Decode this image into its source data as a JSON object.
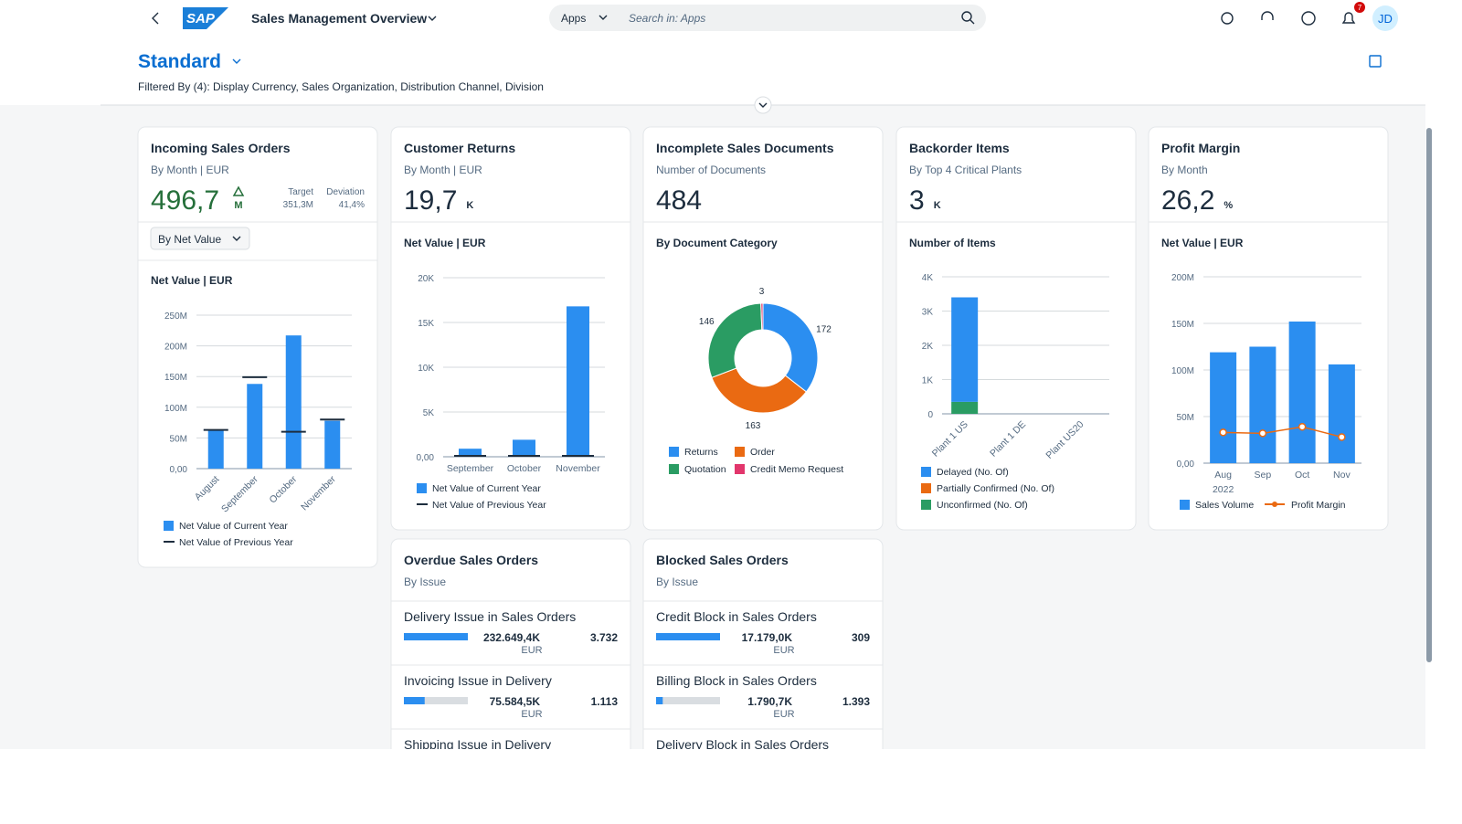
{
  "header": {
    "logo": "SAP",
    "app_title": "Sales Management Overview",
    "search_scope": "Apps",
    "search_placeholder": "Search in: Apps",
    "notification_count": "7",
    "user_initials": "JD"
  },
  "page": {
    "variant": "Standard",
    "filter_text": "Filtered By (4): Display Currency, Sales Organization, Distribution Channel, Division"
  },
  "cards": [
    {
      "title": "Incoming Sales Orders",
      "subtitle": "By Month | EUR",
      "kpi": {
        "value": "496,7",
        "unit": "M",
        "color": "#256f3a",
        "target_label": "Target",
        "target": "351,3M",
        "deviation_label": "Deviation",
        "deviation": "41,4%"
      },
      "dropdown": "By Net Value",
      "chart": {
        "type": "bar",
        "title": "Net Value | EUR",
        "categories": [
          "August",
          "September",
          "October",
          "November"
        ],
        "series": [
          {
            "name": "Net Value of Current Year",
            "color": "#2b8ef0",
            "values": [
              62,
              138,
              217,
              78
            ]
          },
          {
            "name": "Net Value of Previous Year",
            "color": "#1d2d3e",
            "style": "marker",
            "values": [
              63,
              149,
              60,
              80
            ]
          }
        ],
        "ylim": [
          0,
          250
        ],
        "yticks": [
          {
            "value": 0,
            "label": "0,00"
          },
          {
            "value": 50,
            "label": "50M"
          },
          {
            "value": 100,
            "label": "100M"
          },
          {
            "value": 150,
            "label": "150M"
          },
          {
            "value": 200,
            "label": "200M"
          },
          {
            "value": 250,
            "label": "250M"
          }
        ],
        "grid": true,
        "rotate_labels": true
      }
    },
    {
      "title": "Customer Returns",
      "subtitle": "By Month | EUR",
      "kpi": {
        "value": "19,7",
        "unit": "K",
        "color": "#1d2d3e"
      },
      "chart": {
        "type": "bar",
        "title": "Net Value | EUR",
        "categories": [
          "September",
          "October",
          "November"
        ],
        "series": [
          {
            "name": "Net Value of Current Year",
            "color": "#2b8ef0",
            "values": [
              0.9,
              1.9,
              16.8
            ]
          },
          {
            "name": "Net Value of Previous Year",
            "color": "#1d2d3e",
            "style": "marker",
            "values": [
              0.1,
              0.1,
              0.1
            ]
          }
        ],
        "ylim": [
          0,
          20
        ],
        "yticks": [
          {
            "value": 0,
            "label": "0,00"
          },
          {
            "value": 5,
            "label": "5K"
          },
          {
            "value": 10,
            "label": "10K"
          },
          {
            "value": 15,
            "label": "15K"
          },
          {
            "value": 20,
            "label": "20K"
          }
        ],
        "grid": true,
        "rotate_labels": false
      }
    },
    {
      "title": "Incomplete Sales Documents",
      "subtitle": "Number of Documents",
      "kpi": {
        "value": "484",
        "color": "#1d2d3e"
      },
      "chart": {
        "type": "donut",
        "title": "By Document Category",
        "categories": [
          "Returns",
          "Order",
          "Quotation",
          "Credit Memo Request"
        ],
        "values": [
          172,
          163,
          146,
          3
        ],
        "colors": [
          "#2b8ef0",
          "#ea6a12",
          "#2a9c63",
          "#e2366c"
        ]
      }
    },
    {
      "title": "Backorder Items",
      "subtitle": "By Top 4 Critical Plants",
      "kpi": {
        "value": "3",
        "unit": "K",
        "color": "#1d2d3e"
      },
      "chart": {
        "type": "stacked",
        "title": "Number of Items",
        "categories": [
          "Plant 1 US",
          "Plant 1 DE",
          "Plant US20"
        ],
        "series": [
          {
            "name": "Delayed (No. Of)",
            "color": "#2b8ef0",
            "values": [
              3.05,
              0,
              0
            ]
          },
          {
            "name": "Partially Confirmed (No. Of)",
            "color": "#ea6a12",
            "values": [
              0,
              0,
              0
            ]
          },
          {
            "name": "Unconfirmed (No. Of)",
            "color": "#2a9c63",
            "values": [
              0.35,
              0,
              0
            ]
          }
        ],
        "ylim": [
          0,
          4
        ],
        "yticks": [
          0,
          {
            "value": 1,
            "label": "1K"
          },
          {
            "value": 2,
            "label": "2K"
          },
          {
            "value": 3,
            "label": "3K"
          },
          {
            "value": 4,
            "label": "4K"
          }
        ],
        "grid": true,
        "rotate_labels": true
      }
    },
    {
      "title": "Profit Margin",
      "subtitle": "By Month",
      "kpi": {
        "value": "26,2",
        "unit": "%",
        "color": "#1d2d3e"
      },
      "chart": {
        "type": "combo",
        "title": "Net Value | EUR",
        "categories": [
          "Aug",
          "Sep",
          "Oct",
          "Nov"
        ],
        "year_label": "2022",
        "series": [
          {
            "name": "Sales Volume",
            "color": "#2b8ef0",
            "values": [
              119,
              125,
              152,
              106
            ]
          },
          {
            "name": "Profit Margin",
            "color": "#ea6a12",
            "style": "line",
            "values": [
              33,
              32,
              39,
              28
            ]
          }
        ],
        "ylim": [
          0,
          200
        ],
        "yticks": [
          {
            "value": 0,
            "label": "0,00"
          },
          {
            "value": 50,
            "label": "50M"
          },
          {
            "value": 100,
            "label": "100M"
          },
          {
            "value": 150,
            "label": "150M"
          },
          {
            "value": 200,
            "label": "200M"
          }
        ],
        "grid": true,
        "rotate_labels": false
      }
    },
    {
      "title": "Overdue Sales Orders",
      "subtitle": "By Issue",
      "list": {
        "items": [
          {
            "title": "Delivery Issue in Sales Orders",
            "amount": {
              "value": 232649.4,
              "label": "232.649,4K"
            },
            "currency": "EUR",
            "count": "3.732"
          },
          {
            "title": "Invoicing Issue in Delivery",
            "amount": {
              "value": 75584.5,
              "label": "75.584,5K"
            },
            "currency": "EUR",
            "count": "1.113"
          },
          {
            "title": "Shipping Issue in Delivery"
          }
        ]
      }
    },
    {
      "title": "Blocked Sales Orders",
      "subtitle": "By Issue",
      "list": {
        "items": [
          {
            "title": "Credit Block in Sales Orders",
            "amount": {
              "value": 17179.0,
              "label": "17.179,0K"
            },
            "currency": "EUR",
            "count": "309"
          },
          {
            "title": "Billing Block in Sales Orders",
            "amount": {
              "value": 1790.7,
              "label": "1.790,7K"
            },
            "currency": "EUR",
            "count": "1.393"
          },
          {
            "title": "Delivery Block in Sales Orders"
          }
        ]
      }
    }
  ]
}
